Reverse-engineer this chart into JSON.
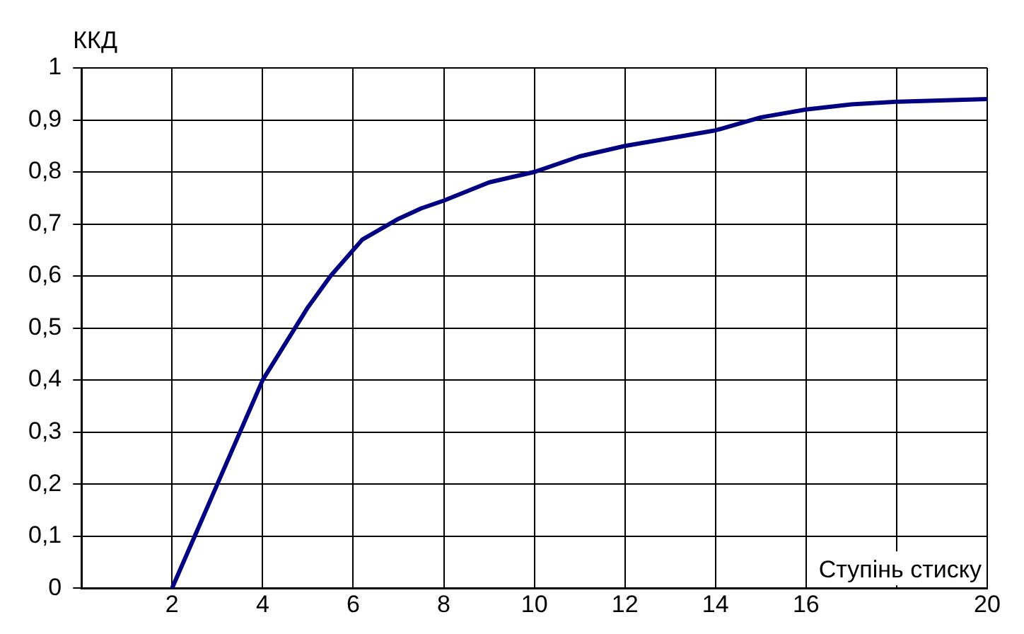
{
  "chart_data": {
    "type": "line",
    "xlabel": "Ступінь стиску",
    "ylabel": "ККД",
    "x": [
      2,
      2.5,
      3,
      3.5,
      4,
      4.5,
      5,
      5.5,
      6.2,
      7,
      7.5,
      8,
      9,
      10,
      11,
      12,
      13,
      14,
      15,
      16,
      17,
      18,
      20
    ],
    "series": [
      {
        "color": "#000080",
        "values": [
          0,
          0.1,
          0.2,
          0.3,
          0.4,
          0.47,
          0.54,
          0.6,
          0.67,
          0.71,
          0.73,
          0.745,
          0.78,
          0.8,
          0.83,
          0.85,
          0.865,
          0.88,
          0.905,
          0.92,
          0.93,
          0.935,
          0.94
        ]
      }
    ],
    "xlim": [
      0,
      20
    ],
    "xticks": [
      2,
      4,
      6,
      8,
      10,
      12,
      14,
      16,
      {
        "value": 18,
        "label": null
      },
      20
    ],
    "ylim": [
      0,
      1
    ],
    "yticks": [
      0,
      {
        "value": 0.1,
        "label": "0,1"
      },
      {
        "value": 0.2,
        "label": "0,2"
      },
      {
        "value": 0.3,
        "label": "0,3"
      },
      {
        "value": 0.4,
        "label": "0,4"
      },
      {
        "value": 0.5,
        "label": "0,5"
      },
      {
        "value": 0.6,
        "label": "0,6"
      },
      {
        "value": 0.7,
        "label": "0,7"
      },
      {
        "value": 0.8,
        "label": "0,8"
      },
      {
        "value": 0.9,
        "label": "0,9"
      },
      1
    ],
    "grid": true,
    "marker": "none",
    "line_style": "solid",
    "legend": false
  }
}
